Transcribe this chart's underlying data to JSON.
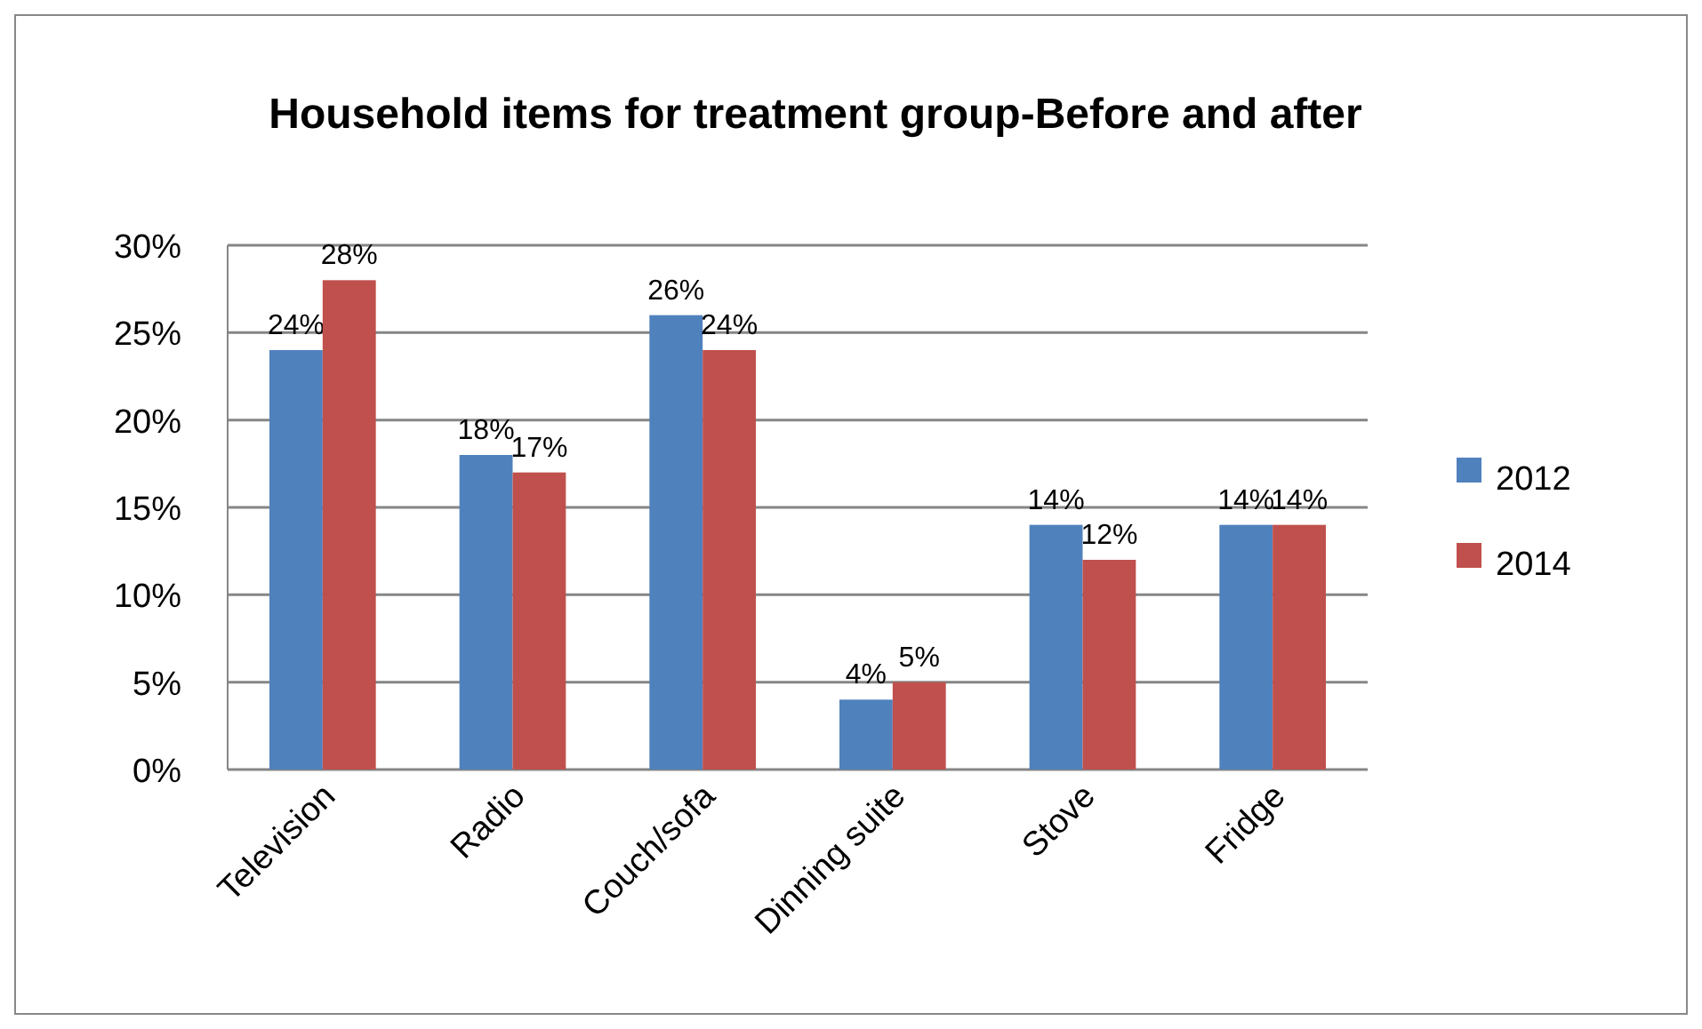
{
  "chart_data": {
    "type": "bar",
    "title": "Household items for treatment group-Before and after",
    "categories": [
      "Television",
      "Radio",
      "Couch/sofa",
      "Dinning suite",
      "Stove",
      "Fridge"
    ],
    "series": [
      {
        "name": "2012",
        "color": "#4f81bd",
        "values": [
          24,
          18,
          26,
          4,
          14,
          14
        ],
        "value_labels": [
          "24%",
          "18%",
          "26%",
          "4%",
          "14%",
          "14%"
        ]
      },
      {
        "name": "2014",
        "color": "#c0504d",
        "values": [
          28,
          17,
          24,
          5,
          12,
          14
        ],
        "value_labels": [
          "28%",
          "17%",
          "24%",
          "5%",
          "12%",
          "14%"
        ]
      }
    ],
    "ylim": [
      0,
      30
    ],
    "yticks": [
      {
        "value": 0,
        "label": "0%"
      },
      {
        "value": 5,
        "label": "5%"
      },
      {
        "value": 10,
        "label": "10%"
      },
      {
        "value": 15,
        "label": "15%"
      },
      {
        "value": 20,
        "label": "20%"
      },
      {
        "value": 25,
        "label": "25%"
      },
      {
        "value": 30,
        "label": "30%"
      }
    ],
    "grid": "y",
    "legend": "right"
  }
}
